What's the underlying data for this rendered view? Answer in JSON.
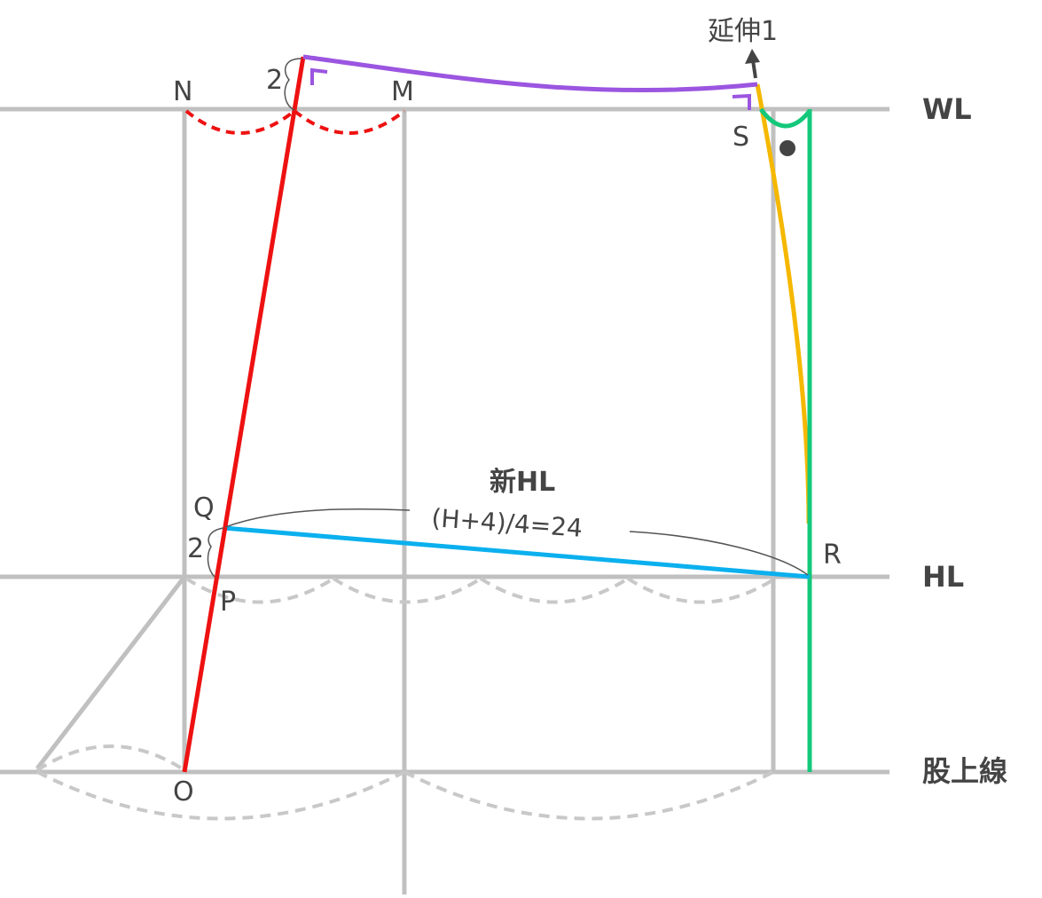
{
  "line_labels": {
    "waist": "WL",
    "hip": "HL",
    "crotch": "股上線"
  },
  "points": {
    "N": "N",
    "M": "M",
    "S": "S",
    "Q": "Q",
    "P": "P",
    "R": "R",
    "O": "O"
  },
  "measurements": {
    "top_offset": "2",
    "q_offset": "2",
    "extension": "延伸1"
  },
  "annotation": {
    "title": "新HL",
    "formula": "(H+4)/4=24"
  },
  "colors": {
    "guide": "#c0c0c0",
    "dash": "#c8c8c8",
    "red": "#ee1111",
    "purple": "#9b55e0",
    "orange": "#f5b800",
    "green": "#13c87a",
    "blue": "#0bb0ee",
    "text": "#444444"
  }
}
